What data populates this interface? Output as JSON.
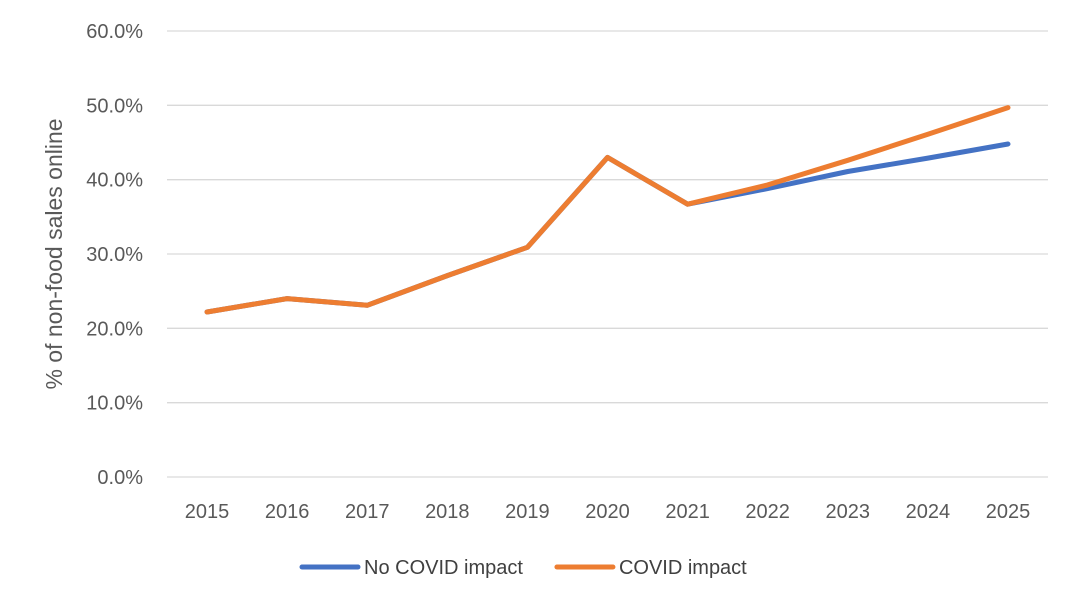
{
  "chart_data": {
    "type": "line",
    "title": "",
    "xlabel": "",
    "ylabel": "% of non-food sales online",
    "categories": [
      "2015",
      "2016",
      "2017",
      "2018",
      "2019",
      "2020",
      "2021",
      "2022",
      "2023",
      "2024",
      "2025"
    ],
    "ylim": [
      0,
      60
    ],
    "yticks": [
      0,
      10,
      20,
      30,
      40,
      50,
      60
    ],
    "ytick_labels": [
      "0.0%",
      "10.0%",
      "20.0%",
      "30.0%",
      "40.0%",
      "50.0%",
      "60.0%"
    ],
    "grid": true,
    "legend": "bottom",
    "series": [
      {
        "name": "No COVID impact",
        "color": "#4472C4",
        "values": [
          22.2,
          24.0,
          23.1,
          27.1,
          30.9,
          43.0,
          36.7,
          38.8,
          41.1,
          42.9,
          44.8
        ]
      },
      {
        "name": "COVID impact",
        "color": "#ED7D31",
        "values": [
          22.2,
          24.0,
          23.1,
          27.1,
          30.9,
          43.0,
          36.7,
          39.3,
          42.6,
          46.1,
          49.7
        ]
      }
    ]
  }
}
